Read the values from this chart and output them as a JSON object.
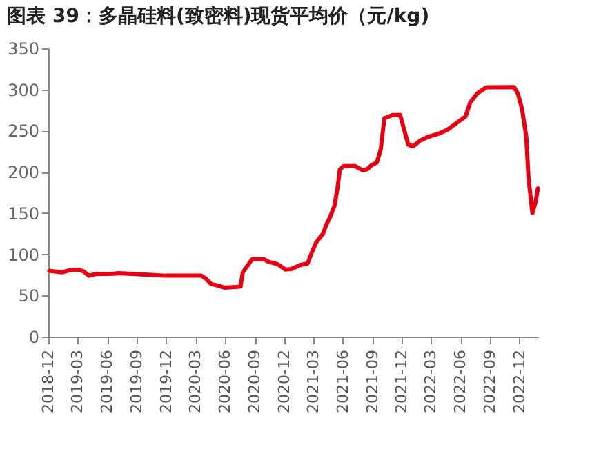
{
  "chart_data": {
    "type": "line",
    "title": "图表 39：多晶硅料(致密料)现货平均价（元/kg)",
    "x": [
      "2018-12-04",
      "2019-01-12",
      "2019-02-09",
      "2019-03-08",
      "2019-03-21",
      "2019-04-06",
      "2019-04-27",
      "2019-06-23",
      "2019-07-07",
      "2019-10-15",
      "2019-11-28",
      "2020-03-20",
      "2020-04-04",
      "2020-04-18",
      "2020-05-09",
      "2020-05-30",
      "2020-07-12",
      "2020-07-19",
      "2020-07-26",
      "2020-08-24",
      "2020-09-29",
      "2020-10-13",
      "2020-11-11",
      "2020-12-05",
      "2020-12-23",
      "2021-01-21",
      "2021-02-12",
      "2021-02-26",
      "2021-03-10",
      "2021-04-01",
      "2021-04-11",
      "2021-04-22",
      "2021-05-06",
      "2021-05-16",
      "2021-05-23",
      "2021-06-04",
      "2021-07-10",
      "2021-08-01",
      "2021-08-15",
      "2021-08-29",
      "2021-09-15",
      "2021-09-27",
      "2021-10-08",
      "2021-11-02",
      "2021-11-26",
      "2021-12-07",
      "2021-12-21",
      "2022-01-05",
      "2022-01-27",
      "2022-02-24",
      "2022-03-23",
      "2022-04-21",
      "2022-05-19",
      "2022-06-17",
      "2022-07-01",
      "2022-07-22",
      "2022-08-20",
      "2022-11-14",
      "2022-11-26",
      "2022-12-09",
      "2022-12-22",
      "2022-12-29",
      "2023-01-10",
      "2023-01-20",
      "2023-01-27"
    ],
    "series": [
      {
        "color": "#e60012",
        "values": [
          80,
          78,
          81,
          81,
          79,
          74,
          76,
          76.5,
          77,
          75,
          74,
          74,
          70,
          64,
          62,
          59.5,
          60.5,
          61,
          78,
          94,
          94,
          91,
          88,
          81.5,
          82,
          87,
          89,
          103,
          114,
          125,
          136,
          144.5,
          158.6,
          181,
          203,
          207,
          207,
          202,
          203,
          208,
          211.6,
          228,
          265,
          269,
          269,
          253,
          233,
          231,
          238,
          243,
          246,
          251,
          259,
          267.5,
          284,
          295,
          302.6,
          303,
          295,
          276,
          242,
          192,
          150,
          164,
          180
        ]
      }
    ],
    "xlim": [
      "2018-12-01",
      "2023-01-28"
    ],
    "xticks": [
      "2018-12",
      "2019-03",
      "2019-06",
      "2019-09",
      "2019-12",
      "2020-03",
      "2020-06",
      "2020-09",
      "2020-12",
      "2021-03",
      "2021-06",
      "2021-09",
      "2021-12",
      "2022-03",
      "2022-06",
      "2022-09",
      "2022-12"
    ],
    "ylim": [
      0,
      350
    ],
    "yticks": [
      0,
      50,
      100,
      150,
      200,
      250,
      300,
      350
    ],
    "grid": false,
    "legend": false,
    "marker": "none",
    "line_style": "solid"
  }
}
